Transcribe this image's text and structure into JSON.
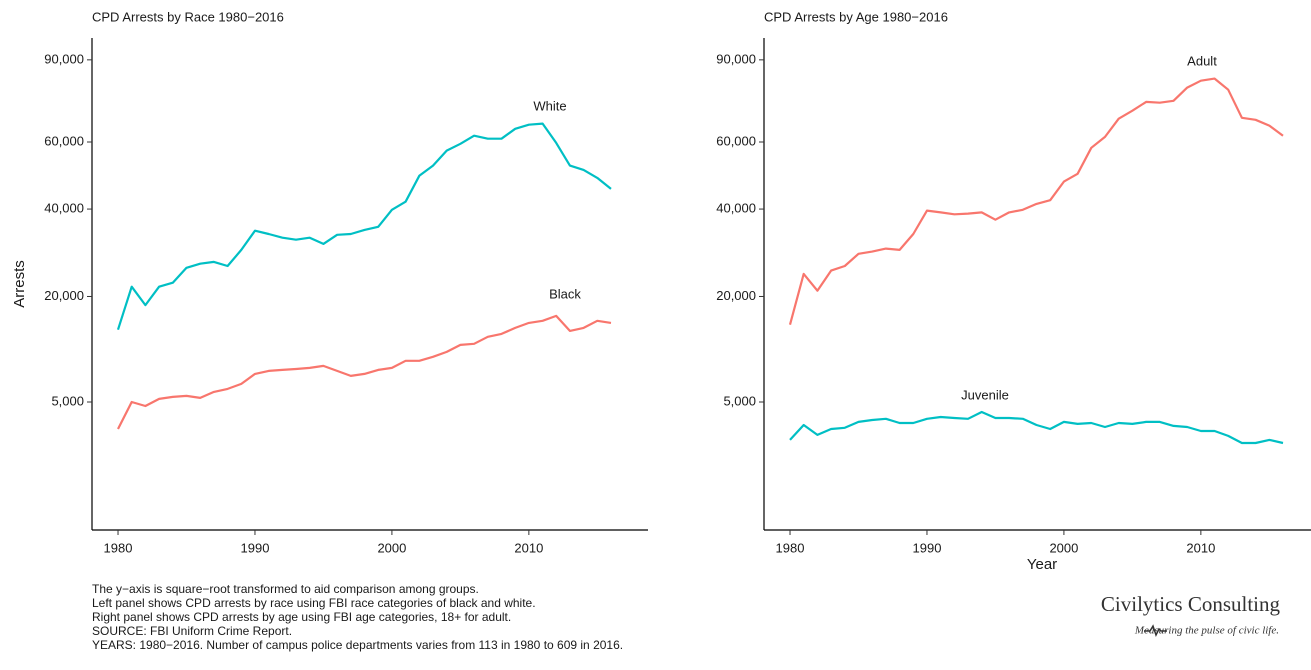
{
  "chart_data": [
    {
      "type": "line",
      "title": "CPD Arrests by Race 1980−2016",
      "y_label": "Arrests",
      "y_scale": "sqrt",
      "x": [
        1980,
        1981,
        1982,
        1983,
        1984,
        1985,
        1986,
        1987,
        1988,
        1989,
        1990,
        1991,
        1992,
        1993,
        1994,
        1995,
        1996,
        1997,
        1998,
        1999,
        2000,
        2001,
        2002,
        2003,
        2004,
        2005,
        2006,
        2007,
        2008,
        2009,
        2010,
        2011,
        2012,
        2013,
        2014,
        2015,
        2016
      ],
      "xlim": [
        1978.1,
        2018.7
      ],
      "xticks": [
        1980,
        1990,
        2000,
        2010
      ],
      "ylim": [
        0,
        99000
      ],
      "yticks": [
        {
          "value": 5000,
          "label": "5,000"
        },
        {
          "value": 20000,
          "label": "20,000"
        },
        {
          "value": 40000,
          "label": "40,000"
        },
        {
          "value": 60000,
          "label": "60,000"
        },
        {
          "value": 90000,
          "label": "90,000"
        }
      ],
      "series": [
        {
          "name": "White",
          "color": "#00BFC4",
          "values": [
            14200,
            21900,
            18400,
            21900,
            22700,
            25800,
            26700,
            27100,
            26200,
            29800,
            34400,
            33600,
            32700,
            32200,
            32700,
            31200,
            33400,
            33600,
            34600,
            35400,
            39800,
            42000,
            49400,
            52500,
            57200,
            59400,
            62100,
            61100,
            61100,
            64400,
            65800,
            66200,
            59700,
            52500,
            51200,
            48800,
            45600
          ]
        },
        {
          "name": "Black",
          "color": "#F8766D",
          "values": [
            2770,
            5000,
            4630,
            5300,
            5490,
            5590,
            5390,
            6000,
            6320,
            6860,
            8020,
            8380,
            8500,
            8620,
            8750,
            9000,
            8380,
            7780,
            8020,
            8500,
            8750,
            9660,
            9660,
            10200,
            10880,
            11880,
            12030,
            13080,
            13540,
            14480,
            15310,
            15650,
            16490,
            14010,
            14480,
            15650,
            15310
          ]
        }
      ]
    },
    {
      "type": "line",
      "title": "CPD Arrests by Age 1980−2016",
      "x_label": "Year",
      "y_scale": "sqrt",
      "x": [
        1980,
        1981,
        1982,
        1983,
        1984,
        1985,
        1986,
        1987,
        1988,
        1989,
        1990,
        1991,
        1992,
        1993,
        1994,
        1995,
        1996,
        1997,
        1998,
        1999,
        2000,
        2001,
        2002,
        2003,
        2004,
        2005,
        2006,
        2007,
        2008,
        2009,
        2010,
        2011,
        2012,
        2013,
        2014,
        2015,
        2016
      ],
      "xlim": [
        1978.1,
        2018.7
      ],
      "xticks": [
        1980,
        1990,
        2000,
        2010
      ],
      "ylim": [
        0,
        99000
      ],
      "yticks": [
        {
          "value": 5000,
          "label": "5,000"
        },
        {
          "value": 20000,
          "label": "20,000"
        },
        {
          "value": 40000,
          "label": "40,000"
        },
        {
          "value": 60000,
          "label": "60,000"
        },
        {
          "value": 90000,
          "label": "90,000"
        }
      ],
      "series": [
        {
          "name": "Adult",
          "color": "#F8766D",
          "values": [
            15000,
            24500,
            21100,
            25200,
            26200,
            28900,
            29400,
            30100,
            29800,
            33600,
            39600,
            39100,
            38600,
            38800,
            39100,
            37200,
            39100,
            39800,
            41400,
            42400,
            47700,
            50000,
            58100,
            61700,
            67900,
            70700,
            73900,
            73600,
            74300,
            79200,
            81800,
            82600,
            78400,
            68200,
            67500,
            65500,
            62100
          ]
        },
        {
          "name": "Juvenile",
          "color": "#00BFC4",
          "values": [
            2050,
            3060,
            2370,
            2770,
            2850,
            3290,
            3440,
            3530,
            3210,
            3210,
            3530,
            3680,
            3600,
            3530,
            4100,
            3600,
            3600,
            3530,
            3060,
            2770,
            3290,
            3140,
            3210,
            2910,
            3210,
            3140,
            3290,
            3290,
            2990,
            2910,
            2630,
            2630,
            2300,
            1870,
            1870,
            2050,
            1870
          ]
        }
      ]
    }
  ],
  "footer": {
    "notes": [
      "The y−axis is square−root transformed to aid comparison among groups.",
      "Left panel shows CPD arrests by race using FBI race categories of black and white.",
      "Right panel shows CPD arrests by age using FBI age categories, 18+ for adult.",
      "SOURCE:  FBI Uniform Crime Report.",
      "YEARS: 1980−2016. Number of campus police departments varies from 113 in 1980 to 609 in 2016."
    ],
    "brand": "Civilytics Consulting",
    "tagline": "Measuring the pulse of civic life."
  }
}
